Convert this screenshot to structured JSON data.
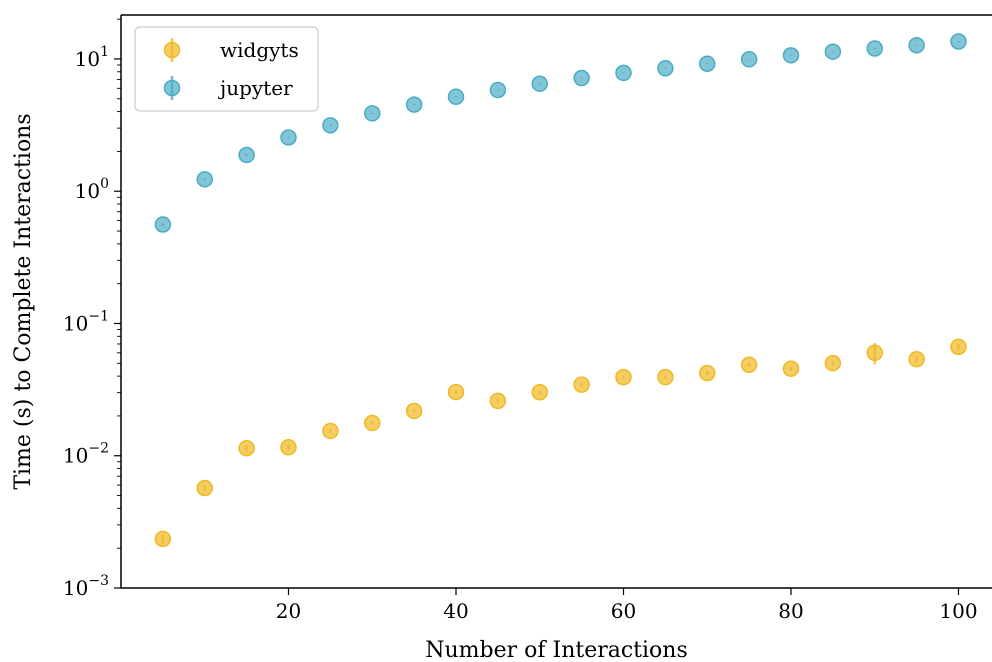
{
  "chart_data": {
    "type": "scatter",
    "title": "",
    "xlabel": "Number of Interactions",
    "ylabel": "Time (s) to Complete Interactions",
    "xlim": [
      0,
      104
    ],
    "ylim": [
      0.001,
      21.5
    ],
    "yscale": "log",
    "x_ticks": [
      20,
      40,
      60,
      80,
      100
    ],
    "x_tick_labels": [
      "20",
      "40",
      "60",
      "80",
      "100"
    ],
    "y_ticks": [
      0.001,
      0.01,
      0.1,
      1,
      10
    ],
    "y_tick_labels": [
      {
        "base": "10",
        "exp": "−3"
      },
      {
        "base": "10",
        "exp": "−2"
      },
      {
        "base": "10",
        "exp": "−1"
      },
      {
        "base": "10",
        "exp": "0"
      },
      {
        "base": "10",
        "exp": "1"
      }
    ],
    "grid": false,
    "legend_position": "top-left",
    "x": [
      5,
      10,
      15,
      20,
      25,
      30,
      35,
      40,
      45,
      50,
      55,
      60,
      65,
      70,
      75,
      80,
      85,
      90,
      95,
      100
    ],
    "series": [
      {
        "name": "widgyts",
        "color": "#f0b922",
        "values": [
          0.00235,
          0.0057,
          0.0114,
          0.0116,
          0.0154,
          0.0177,
          0.0218,
          0.0303,
          0.026,
          0.0302,
          0.0345,
          0.0393,
          0.0393,
          0.0422,
          0.0487,
          0.0455,
          0.0501,
          0.0601,
          0.0537,
          0.0665
        ],
        "errors": [
          0.00017,
          0.0003,
          0.0006,
          0.0006,
          0.0005,
          0.0005,
          0.0006,
          0.001,
          0.001,
          0.0009,
          0.0012,
          0.0012,
          0.0012,
          0.0015,
          0.0015,
          0.0015,
          0.002,
          0.011,
          0.003,
          0.004
        ]
      },
      {
        "name": "jupyter",
        "color": "#4bacc6",
        "values": [
          0.56,
          1.23,
          1.88,
          2.55,
          3.15,
          3.88,
          4.52,
          5.18,
          5.82,
          6.5,
          7.18,
          7.85,
          8.5,
          9.2,
          9.95,
          10.65,
          11.35,
          12.0,
          12.7,
          13.55
        ],
        "errors": [
          0.01,
          0.02,
          0.03,
          0.03,
          0.04,
          0.04,
          0.05,
          0.05,
          0.05,
          0.06,
          0.06,
          0.07,
          0.07,
          0.08,
          0.08,
          0.09,
          0.09,
          0.1,
          0.1,
          0.12
        ]
      }
    ]
  }
}
